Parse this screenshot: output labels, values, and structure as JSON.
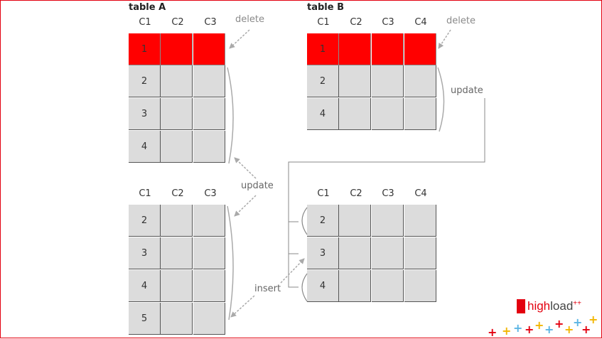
{
  "tableA": {
    "title": "table A",
    "headers": [
      "C1",
      "C2",
      "C3"
    ],
    "rows": [
      "1",
      "2",
      "3",
      "4"
    ]
  },
  "tableB": {
    "title": "table B",
    "headers": [
      "C1",
      "C2",
      "C3",
      "C4"
    ],
    "rows": [
      "1",
      "2",
      "4"
    ]
  },
  "resultA": {
    "headers": [
      "C1",
      "C2",
      "C3"
    ],
    "rows": [
      "2",
      "3",
      "4",
      "5"
    ]
  },
  "resultB": {
    "headers": [
      "C1",
      "C2",
      "C3",
      "C4"
    ],
    "rows": [
      "2",
      "3",
      "4"
    ]
  },
  "labels": {
    "deleteA": "delete",
    "deleteB": "delete",
    "updateA": "update",
    "updateB": "update",
    "insert": "insert"
  },
  "logo": {
    "brand_a": "high",
    "brand_b": "load",
    "sup": "++"
  },
  "colors": {
    "deleted_row": "#ff0000",
    "cell": "#dcdcdc",
    "brand": "#e3000f"
  }
}
